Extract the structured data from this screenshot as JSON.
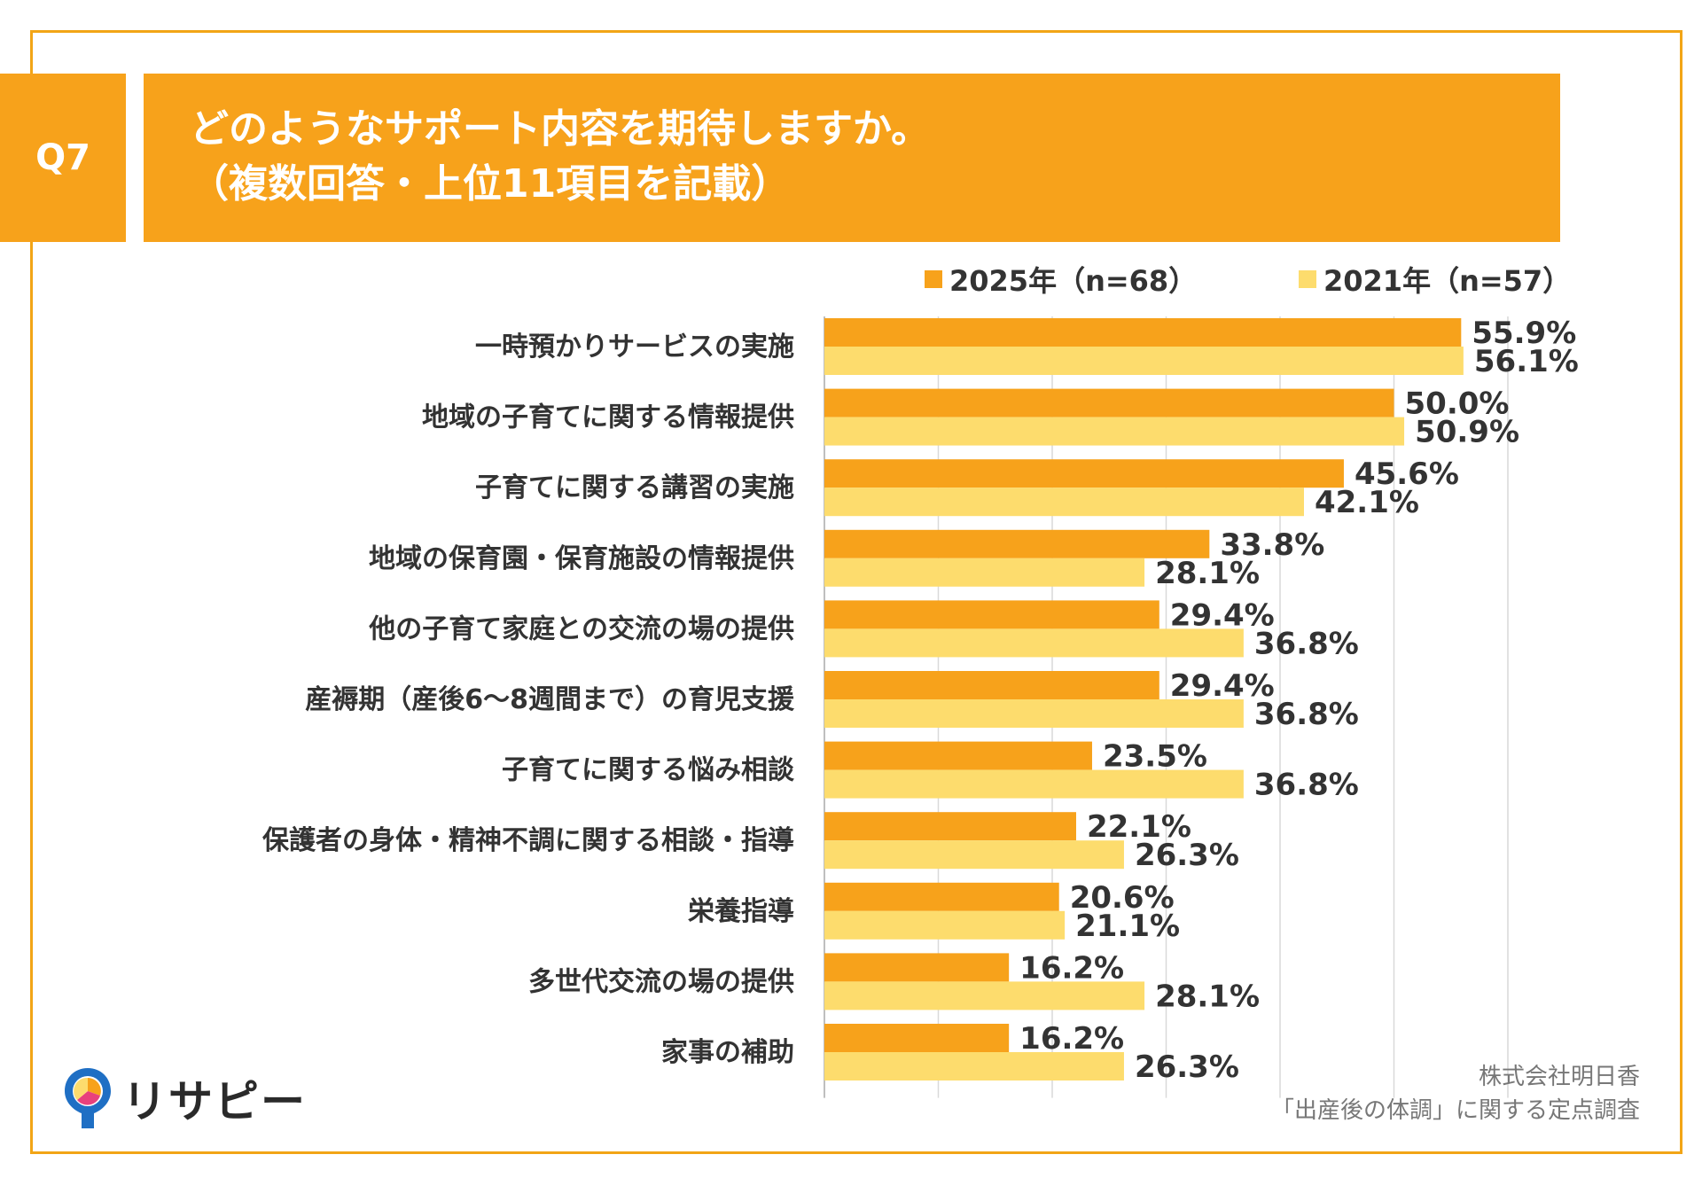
{
  "header": {
    "question_no": "Q7",
    "title_line1": "どのようなサポート内容を期待しますか。",
    "title_line2": "（複数回答・上位11項目を記載）"
  },
  "colors": {
    "accent": "#f7a21b",
    "series_2025": "#f7a21b",
    "series_2021": "#fddc6d",
    "frame": "#f2a516"
  },
  "logo": {
    "text": "リサピー",
    "icon": "pin-logo-icon"
  },
  "credit": {
    "line1": "株式会社明日香",
    "line2": "「出産後の体調」に関する定点調査"
  },
  "chart_data": {
    "type": "bar",
    "orientation": "horizontal",
    "grid": true,
    "legend_position": "top-right",
    "xlim": [
      0,
      60
    ],
    "categories": [
      "一時預かりサービスの実施",
      "地域の子育てに関する情報提供",
      "子育てに関する講習の実施",
      "地域の保育園・保育施設の情報提供",
      "他の子育て家庭との交流の場の提供",
      "産褥期（産後6～8週間まで）の育児支援",
      "子育てに関する悩み相談",
      "保護者の身体・精神不調に関する相談・指導",
      "栄養指導",
      "多世代交流の場の提供",
      "家事の補助"
    ],
    "series": [
      {
        "name": "2025年（n=68）",
        "values": [
          55.9,
          50.0,
          45.6,
          33.8,
          29.4,
          29.4,
          23.5,
          22.1,
          20.6,
          16.2,
          16.2
        ],
        "labels": [
          "55.9%",
          "50.0%",
          "45.6%",
          "33.8%",
          "29.4%",
          "29.4%",
          "23.5%",
          "22.1%",
          "20.6%",
          "16.2%",
          "16.2%"
        ]
      },
      {
        "name": "2021年（n=57）",
        "values": [
          56.1,
          50.9,
          42.1,
          28.1,
          36.8,
          36.8,
          36.8,
          26.3,
          21.1,
          28.1,
          26.3
        ],
        "labels": [
          "56.1%",
          "50.9%",
          "42.1%",
          "28.1%",
          "36.8%",
          "36.8%",
          "36.8%",
          "26.3%",
          "21.1%",
          "28.1%",
          "26.3%"
        ]
      }
    ]
  }
}
